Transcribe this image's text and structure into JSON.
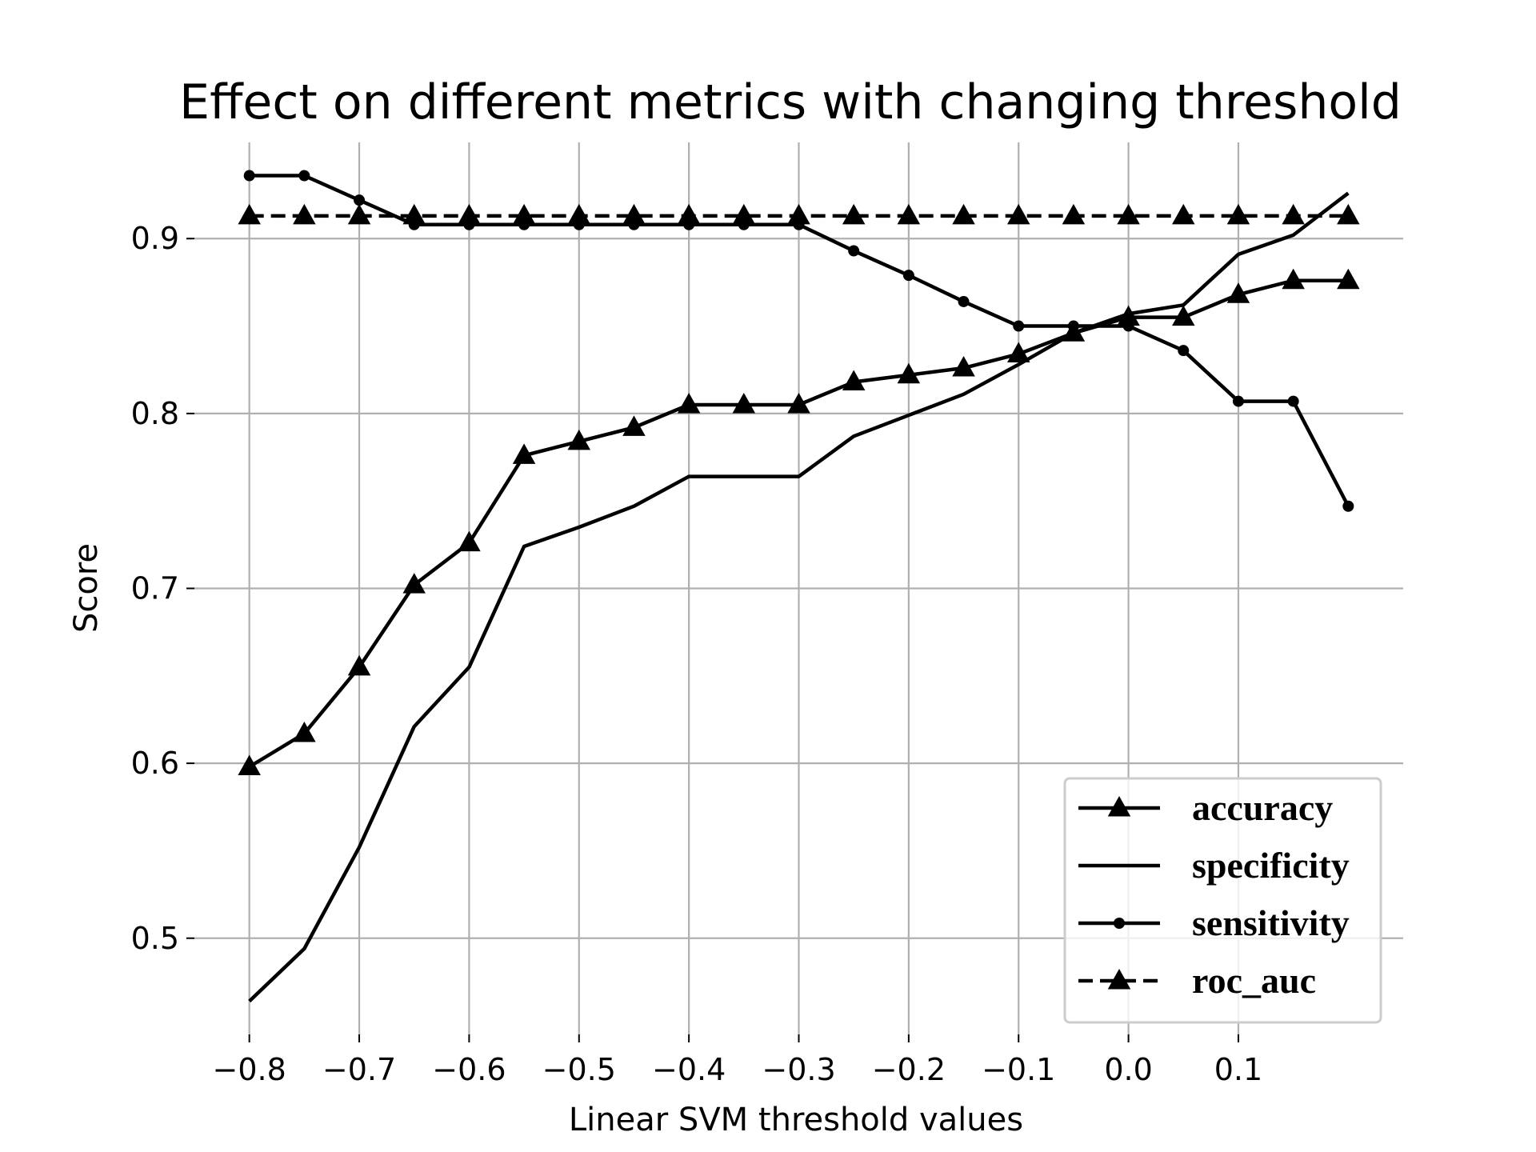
{
  "chart_data": {
    "type": "line",
    "title": "Effect on different metrics with changing threshold",
    "xlabel": "Linear SVM threshold values",
    "ylabel": "Score",
    "xlim": [
      -0.85,
      0.25
    ],
    "ylim": [
      0.445,
      0.955
    ],
    "xticks": [
      -0.8,
      -0.7,
      -0.6,
      -0.5,
      -0.4,
      -0.3,
      -0.2,
      -0.1,
      0.0,
      0.1
    ],
    "xtick_labels": [
      "−0.8",
      "−0.7",
      "−0.6",
      "−0.5",
      "−0.4",
      "−0.3",
      "−0.2",
      "−0.1",
      "0.0",
      "0.1"
    ],
    "yticks": [
      0.5,
      0.6,
      0.7,
      0.8,
      0.9
    ],
    "ytick_labels": [
      "0.5",
      "0.6",
      "0.7",
      "0.8",
      "0.9"
    ],
    "grid": true,
    "legend_position": "lower-right",
    "x": [
      -0.8,
      -0.75,
      -0.7,
      -0.65,
      -0.6,
      -0.55,
      -0.5,
      -0.45,
      -0.4,
      -0.35,
      -0.3,
      -0.25,
      -0.2,
      -0.15,
      -0.1,
      -0.05,
      0.0,
      0.05,
      0.1,
      0.15,
      0.2
    ],
    "series": [
      {
        "name": "accuracy",
        "marker": "triangle",
        "linestyle": "solid",
        "values": [
          0.598,
          0.617,
          0.655,
          0.702,
          0.726,
          0.776,
          0.784,
          0.792,
          0.805,
          0.805,
          0.805,
          0.818,
          0.822,
          0.826,
          0.834,
          0.846,
          0.855,
          0.855,
          0.868,
          0.876,
          0.876
        ]
      },
      {
        "name": "specificity",
        "marker": "none",
        "linestyle": "solid",
        "values": [
          0.464,
          0.494,
          0.552,
          0.621,
          0.655,
          0.724,
          0.735,
          0.747,
          0.764,
          0.764,
          0.764,
          0.787,
          0.799,
          0.811,
          0.828,
          0.846,
          0.857,
          0.862,
          0.891,
          0.902,
          0.926
        ]
      },
      {
        "name": "sensitivity",
        "marker": "circle",
        "linestyle": "solid",
        "values": [
          0.936,
          0.936,
          0.922,
          0.908,
          0.908,
          0.908,
          0.908,
          0.908,
          0.908,
          0.908,
          0.908,
          0.893,
          0.879,
          0.864,
          0.85,
          0.85,
          0.85,
          0.836,
          0.807,
          0.807,
          0.747
        ]
      },
      {
        "name": "roc_auc",
        "marker": "triangle",
        "linestyle": "dashed",
        "values": [
          0.913,
          0.913,
          0.913,
          0.913,
          0.913,
          0.913,
          0.913,
          0.913,
          0.913,
          0.913,
          0.913,
          0.913,
          0.913,
          0.913,
          0.913,
          0.913,
          0.913,
          0.913,
          0.913,
          0.913,
          0.913
        ]
      }
    ]
  },
  "colors": {
    "line": "#000000",
    "grid": "#b0b0b0",
    "legend_border": "#cccccc",
    "background": "#ffffff"
  }
}
